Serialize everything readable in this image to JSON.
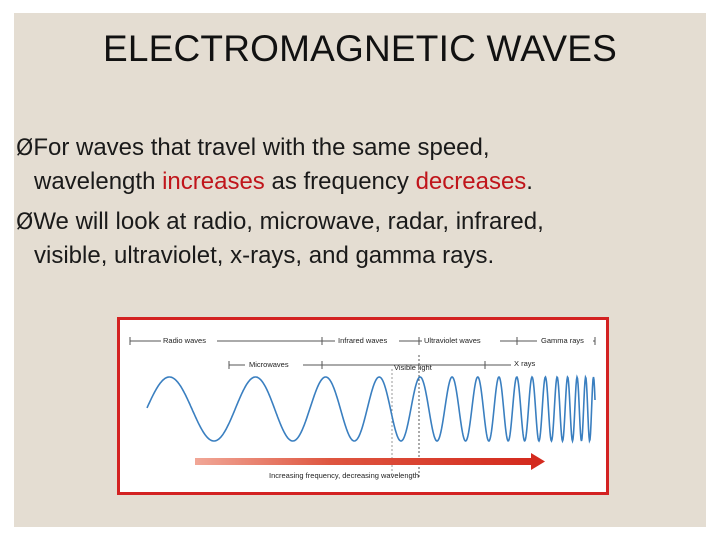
{
  "slide": {
    "title": "ELECTROMAGNETIC WAVES",
    "bullets": [
      {
        "marker": "Ø",
        "line1": "For waves that travel with the same speed,",
        "line2_a": "wavelength ",
        "line2_b": "increases",
        "line2_c": " as frequency ",
        "line2_d": "decreases",
        "line2_e": "."
      },
      {
        "marker": "Ø",
        "line1": "We will look at radio, microwave, radar, infrared,",
        "line2": "visible, ultraviolet, x-rays, and gamma rays."
      }
    ]
  },
  "spectrum": {
    "labels": {
      "radio": "Radio waves",
      "infrared": "Infrared waves",
      "ultraviolet": "Ultraviolet waves",
      "gamma": "Gamma rays",
      "microwaves": "Microwaves",
      "visible": "Visible light",
      "xrays": "X rays",
      "arrow": "Increasing frequency, decreasing wavelength"
    },
    "colors": {
      "frame": "#d32222",
      "wave": "#3a7fc0",
      "arrow": "#d42a1e",
      "emphasis": "#c0151b"
    }
  }
}
